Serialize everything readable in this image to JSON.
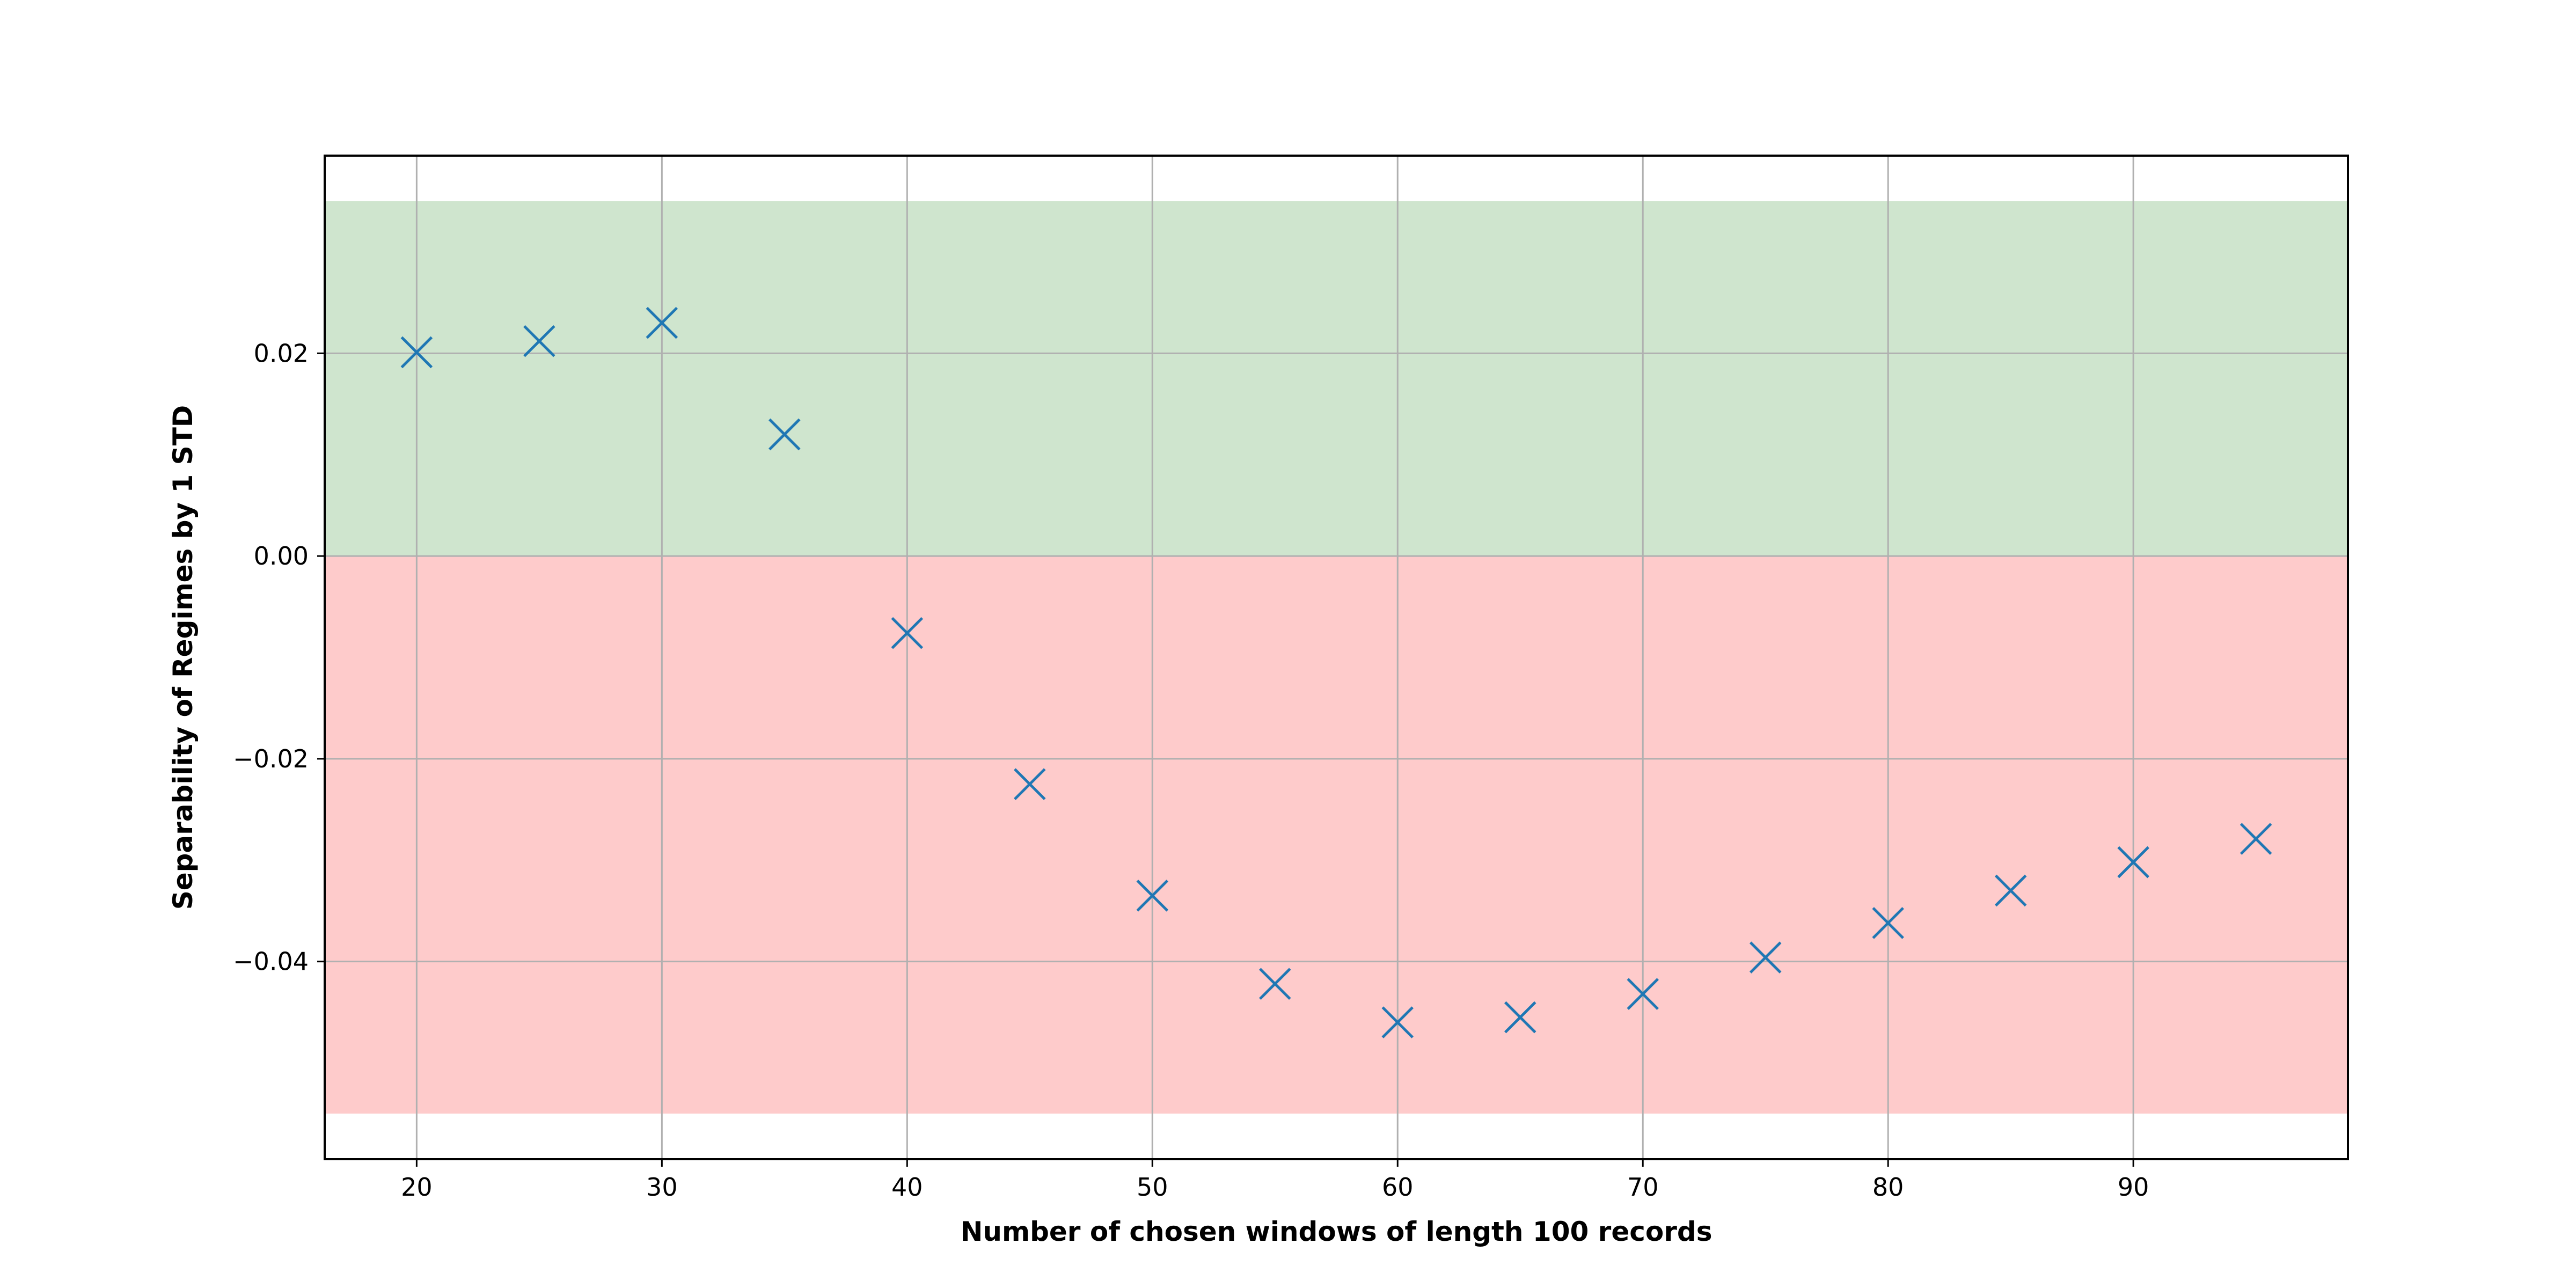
{
  "chart_data": {
    "type": "scatter",
    "title": "",
    "xlabel": "Number of chosen windows of length 100 records",
    "ylabel": "Separability of Regimes by 1 STD",
    "xlim": [
      16.25,
      98.75
    ],
    "ylim": [
      -0.0595,
      0.0395
    ],
    "x_ticks": [
      20,
      30,
      40,
      50,
      60,
      70,
      80,
      90
    ],
    "x_tick_labels": [
      "20",
      "30",
      "40",
      "50",
      "60",
      "70",
      "80",
      "90"
    ],
    "y_ticks": [
      0.02,
      0.0,
      -0.02,
      -0.04
    ],
    "y_tick_labels": [
      "0.02",
      "0.00",
      "−0.02",
      "−0.04"
    ],
    "grid": true,
    "marker": "x",
    "marker_color": "#1f77b4",
    "bands": [
      {
        "y_from": 0.0,
        "y_to": 0.035,
        "color": "#cfe5ce"
      },
      {
        "y_from": -0.055,
        "y_to": 0.0,
        "color": "#fecbcb"
      }
    ],
    "series": [
      {
        "x": [
          20,
          25,
          30,
          35,
          40,
          45,
          50,
          55,
          60,
          65,
          70,
          75,
          80,
          85,
          90,
          95
        ],
        "y": [
          0.0201,
          0.0212,
          0.023,
          0.012,
          -0.0076,
          -0.0225,
          -0.0335,
          -0.0422,
          -0.046,
          -0.0455,
          -0.0432,
          -0.0396,
          -0.0362,
          -0.033,
          -0.0302,
          -0.0279
        ]
      }
    ]
  }
}
